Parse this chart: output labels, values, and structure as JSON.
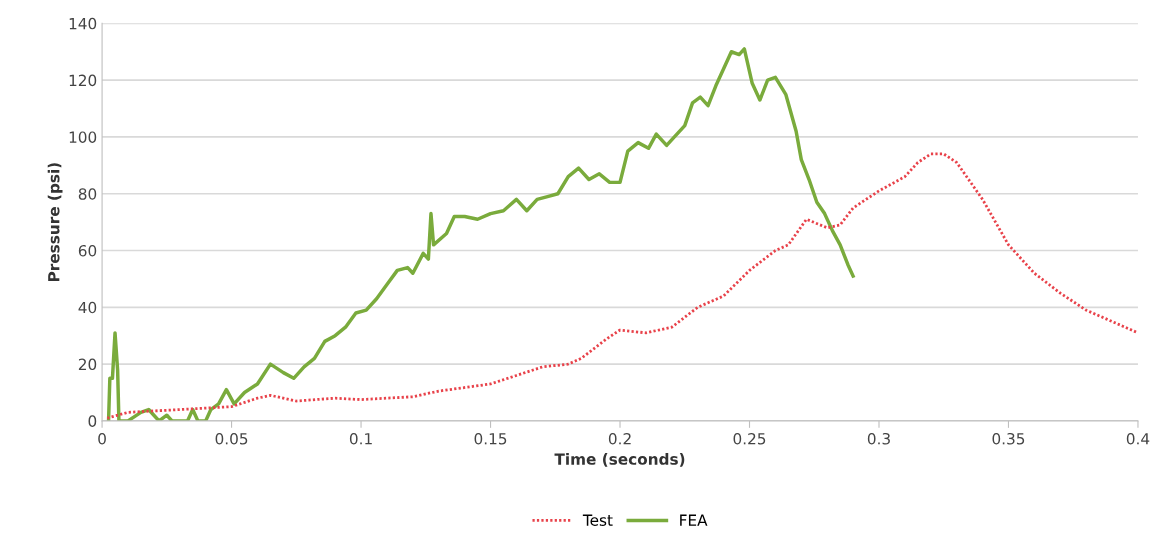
{
  "chart_data": {
    "type": "line",
    "xlabel": "Time (seconds)",
    "ylabel": "Pressure (psi)",
    "xlim": [
      0,
      0.4
    ],
    "ylim": [
      0,
      140
    ],
    "xticks": [
      0,
      0.05,
      0.1,
      0.15,
      0.2,
      0.25,
      0.3,
      0.35,
      0.4
    ],
    "yticks": [
      0,
      20,
      40,
      60,
      80,
      100,
      120,
      140
    ],
    "grid": "y",
    "legend": "bottom",
    "marker": "none",
    "series": [
      {
        "name": "Test",
        "color": "#e8424a",
        "line_style": "dotted",
        "x": [
          0.002,
          0.01,
          0.02,
          0.03,
          0.04,
          0.05,
          0.06,
          0.065,
          0.075,
          0.09,
          0.1,
          0.12,
          0.13,
          0.15,
          0.16,
          0.17,
          0.18,
          0.185,
          0.195,
          0.2,
          0.21,
          0.22,
          0.23,
          0.24,
          0.25,
          0.26,
          0.265,
          0.272,
          0.28,
          0.285,
          0.29,
          0.3,
          0.31,
          0.315,
          0.32,
          0.325,
          0.33,
          0.34,
          0.35,
          0.36,
          0.37,
          0.38,
          0.39,
          0.4
        ],
        "values": [
          1,
          3,
          3.5,
          4,
          4.5,
          5,
          8,
          9,
          7,
          8,
          7.5,
          8.5,
          10.5,
          13,
          16,
          19,
          20,
          22,
          29,
          32,
          31,
          33,
          40,
          44,
          53,
          60,
          62,
          71,
          68,
          69,
          75,
          81,
          86,
          91,
          94,
          94,
          91,
          78,
          62,
          52,
          45,
          39,
          35,
          31
        ]
      },
      {
        "name": "FEA",
        "color": "#7aab3c",
        "line_style": "solid",
        "x": [
          0.0025,
          0.003,
          0.004,
          0.005,
          0.006,
          0.0065,
          0.01,
          0.015,
          0.018,
          0.02,
          0.022,
          0.025,
          0.027,
          0.033,
          0.035,
          0.037,
          0.04,
          0.042,
          0.045,
          0.048,
          0.051,
          0.055,
          0.06,
          0.065,
          0.07,
          0.074,
          0.078,
          0.082,
          0.086,
          0.09,
          0.094,
          0.098,
          0.102,
          0.106,
          0.11,
          0.114,
          0.118,
          0.12,
          0.124,
          0.126,
          0.127,
          0.128,
          0.133,
          0.136,
          0.14,
          0.145,
          0.15,
          0.155,
          0.16,
          0.164,
          0.168,
          0.172,
          0.176,
          0.18,
          0.184,
          0.188,
          0.192,
          0.196,
          0.2,
          0.203,
          0.207,
          0.211,
          0.214,
          0.218,
          0.221,
          0.225,
          0.228,
          0.231,
          0.234,
          0.237,
          0.24,
          0.243,
          0.246,
          0.248,
          0.251,
          0.254,
          0.257,
          0.26,
          0.264,
          0.268,
          0.27,
          0.273,
          0.276,
          0.279,
          0.282,
          0.285,
          0.288,
          0.29
        ],
        "values": [
          0,
          15,
          15,
          31,
          18,
          0,
          0,
          3,
          4,
          2,
          0,
          2,
          0,
          0,
          4,
          0,
          0,
          4,
          6,
          11,
          6,
          10,
          13,
          20,
          17,
          15,
          19,
          22,
          28,
          30,
          33,
          38,
          39,
          43,
          48,
          53,
          54,
          52,
          59,
          57,
          73,
          62,
          66,
          72,
          72,
          71,
          73,
          74,
          78,
          74,
          78,
          79,
          80,
          86,
          89,
          85,
          87,
          84,
          84,
          95,
          98,
          96,
          101,
          97,
          100,
          104,
          112,
          114,
          111,
          118,
          124,
          130,
          129,
          131,
          119,
          113,
          120,
          121,
          115,
          102,
          92,
          85,
          77,
          73,
          67,
          62,
          55,
          51
        ]
      }
    ]
  }
}
